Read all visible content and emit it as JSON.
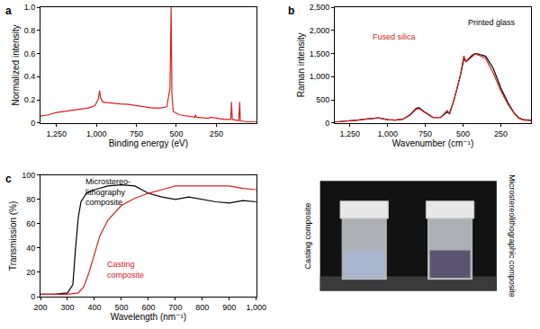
{
  "chart_data": [
    {
      "type": "line",
      "title": "a",
      "x_label": "Binding energy (eV)",
      "y_label": "Normalized intensity",
      "xlim": [
        1350,
        0
      ],
      "ylim": [
        0,
        1
      ],
      "xticks": [
        {
          "value": 1250,
          "label": "1,250"
        },
        {
          "value": 1000,
          "label": "1,000"
        },
        750,
        500,
        250
      ],
      "yticks": [
        0,
        0.2,
        0.4,
        0.6,
        0.8,
        {
          "value": 1,
          "label": "1.0"
        }
      ],
      "grid": false,
      "series": [
        {
          "color": "#d62020",
          "x": [
            1350,
            1300,
            1250,
            1200,
            1150,
            1100,
            1050,
            1010,
            990,
            980,
            975,
            960,
            900,
            850,
            800,
            750,
            700,
            650,
            600,
            560,
            540,
            533,
            528,
            520,
            480,
            440,
            400,
            385,
            380,
            375,
            300,
            285,
            200,
            160,
            155,
            150,
            110,
            104,
            100,
            60,
            0
          ],
          "values": [
            0.06,
            0.07,
            0.09,
            0.1,
            0.11,
            0.12,
            0.13,
            0.15,
            0.2,
            0.28,
            0.22,
            0.18,
            0.17,
            0.165,
            0.16,
            0.15,
            0.14,
            0.13,
            0.13,
            0.14,
            0.3,
            1.0,
            0.25,
            0.1,
            0.07,
            0.06,
            0.05,
            0.05,
            0.07,
            0.05,
            0.04,
            0.05,
            0.03,
            0.03,
            0.18,
            0.03,
            0.02,
            0.18,
            0.02,
            0.01,
            0.01
          ]
        }
      ]
    },
    {
      "type": "line",
      "title": "b",
      "x_label": "Wavenumber (cm⁻¹)",
      "y_label": "Raman intensity",
      "xlim": [
        1350,
        50
      ],
      "ylim": [
        0,
        2500
      ],
      "xticks": [
        {
          "value": 1250,
          "label": "1,250"
        },
        {
          "value": 1000,
          "label": "1,000"
        },
        750,
        500,
        250
      ],
      "yticks": [
        0,
        500,
        {
          "value": 1000,
          "label": "1,000"
        },
        {
          "value": 1500,
          "label": "1,500"
        },
        {
          "value": 2000,
          "label": "2,000"
        },
        {
          "value": 2500,
          "label": "2,500"
        }
      ],
      "grid": false,
      "series": [
        {
          "name": "Printed glass",
          "color": "#000000",
          "x": [
            1350,
            1250,
            1200,
            1150,
            1100,
            1060,
            1000,
            950,
            900,
            850,
            810,
            790,
            760,
            700,
            650,
            605,
            590,
            560,
            520,
            495,
            480,
            440,
            420,
            400,
            350,
            300,
            250,
            200,
            160,
            130,
            100,
            50
          ],
          "values": [
            20,
            40,
            60,
            80,
            100,
            110,
            70,
            60,
            80,
            180,
            320,
            330,
            250,
            120,
            120,
            240,
            200,
            500,
            1000,
            1380,
            1330,
            1460,
            1500,
            1490,
            1440,
            1180,
            760,
            420,
            210,
            110,
            70,
            60
          ]
        },
        {
          "name": "Fused silica",
          "color": "#d62020",
          "x": [
            1350,
            1250,
            1200,
            1150,
            1100,
            1060,
            1000,
            950,
            900,
            850,
            810,
            790,
            760,
            700,
            650,
            605,
            590,
            560,
            520,
            495,
            480,
            440,
            420,
            400,
            350,
            300,
            250,
            200,
            160,
            130,
            100,
            50
          ],
          "values": [
            20,
            40,
            60,
            80,
            100,
            110,
            70,
            60,
            80,
            170,
            300,
            310,
            240,
            120,
            120,
            270,
            200,
            500,
            1000,
            1450,
            1320,
            1440,
            1490,
            1470,
            1390,
            1080,
            690,
            390,
            200,
            100,
            60,
            50
          ]
        }
      ]
    },
    {
      "type": "line",
      "title": "c",
      "x_label": "Wavelength (nm⁻¹)",
      "y_label": "Transmission (%)",
      "xlim": [
        200,
        1000
      ],
      "ylim": [
        0,
        100
      ],
      "xticks": [
        200,
        300,
        400,
        500,
        600,
        700,
        800,
        900,
        {
          "value": 1000,
          "label": "1,000"
        }
      ],
      "yticks": [
        0,
        20,
        40,
        60,
        80,
        100
      ],
      "grid": false,
      "series": [
        {
          "name": "Microstereo-lithography composite",
          "color": "#000000",
          "x": [
            200,
            250,
            300,
            320,
            330,
            340,
            350,
            370,
            400,
            450,
            500,
            550,
            575,
            600,
            650,
            700,
            750,
            800,
            850,
            900,
            950,
            1000
          ],
          "values": [
            2,
            2,
            3,
            10,
            40,
            65,
            78,
            85,
            88,
            91,
            92,
            91,
            88,
            85,
            82,
            80,
            82,
            80,
            78,
            77,
            79,
            78
          ]
        },
        {
          "name": "Casting composite",
          "color": "#d62020",
          "x": [
            200,
            300,
            340,
            360,
            380,
            400,
            420,
            450,
            500,
            550,
            600,
            650,
            700,
            800,
            900,
            950,
            1000
          ],
          "values": [
            2,
            2,
            3,
            8,
            20,
            35,
            50,
            63,
            75,
            81,
            85,
            88,
            91,
            91,
            91,
            89,
            88
          ]
        }
      ]
    }
  ],
  "photo": {
    "labels": [
      "Casting composite",
      "Microstereolithographic composite"
    ]
  }
}
